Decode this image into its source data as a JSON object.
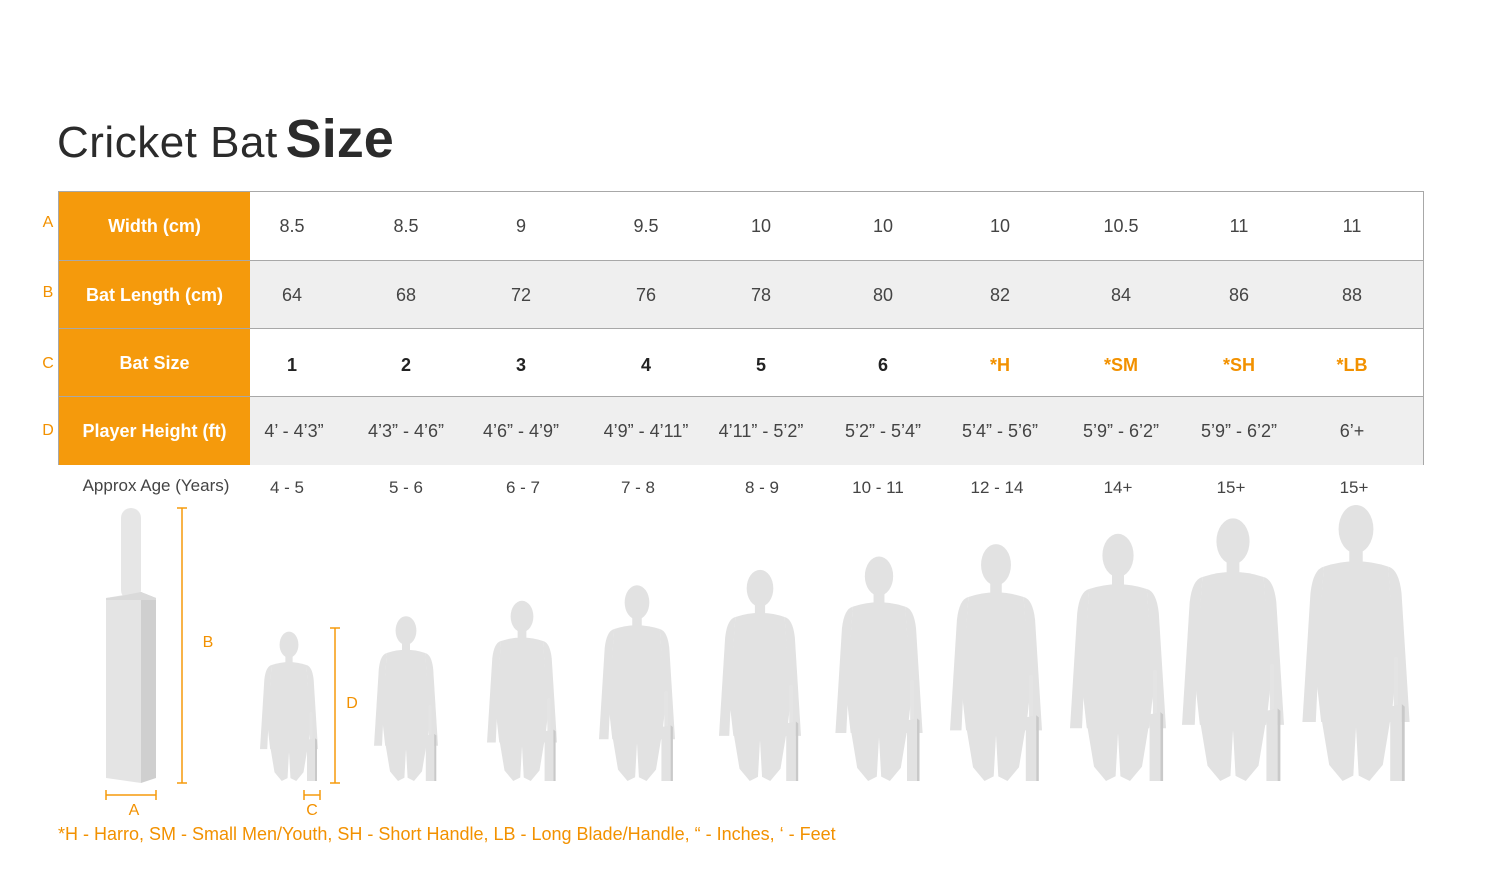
{
  "title": {
    "light": "Cricket Bat",
    "bold": "Size"
  },
  "row_letters": [
    "A",
    "B",
    "C",
    "D"
  ],
  "rows": [
    {
      "label": "Width (cm)",
      "values": [
        "8.5",
        "8.5",
        "9",
        "9.5",
        "10",
        "10",
        "10",
        "10.5",
        "11",
        "11"
      ]
    },
    {
      "label": "Bat Length (cm)",
      "values": [
        "64",
        "68",
        "72",
        "76",
        "78",
        "80",
        "82",
        "84",
        "86",
        "88"
      ]
    },
    {
      "label": "Bat Size",
      "values": [
        "1",
        "2",
        "3",
        "4",
        "5",
        "6",
        "*H",
        "*SM",
        "*SH",
        "*LB"
      ]
    },
    {
      "label": "Player Height (ft)",
      "values": [
        "4’ - 4’3”",
        "4’3” - 4’6”",
        "4’6” - 4’9”",
        "4’9” - 4’11”",
        "4’11” - 5’2”",
        "5’2” - 5’4”",
        "5’4” - 5’6”",
        "5’9” - 6’2”",
        "5’9” - 6’2”",
        "6’+"
      ]
    }
  ],
  "age": {
    "label": "Approx Age (Years)",
    "values": [
      "4 - 5",
      "5 - 6",
      "6 - 7",
      "7 - 8",
      "8 - 9",
      "10 - 11",
      "12 - 14",
      "14+",
      "15+",
      "15+"
    ]
  },
  "diagram": {
    "label_a": "A",
    "label_b": "B",
    "label_c": "C",
    "label_d": "D"
  },
  "footnote": "*H - Harro, SM - Small Men/Youth, SH - Short Handle,  LB - Long Blade/Handle, “ - Inches, ‘ - Feet",
  "colors": {
    "accent": "#f59a0c",
    "figure": "#e2e2e2",
    "bat_shade": "#cfcfcf"
  }
}
